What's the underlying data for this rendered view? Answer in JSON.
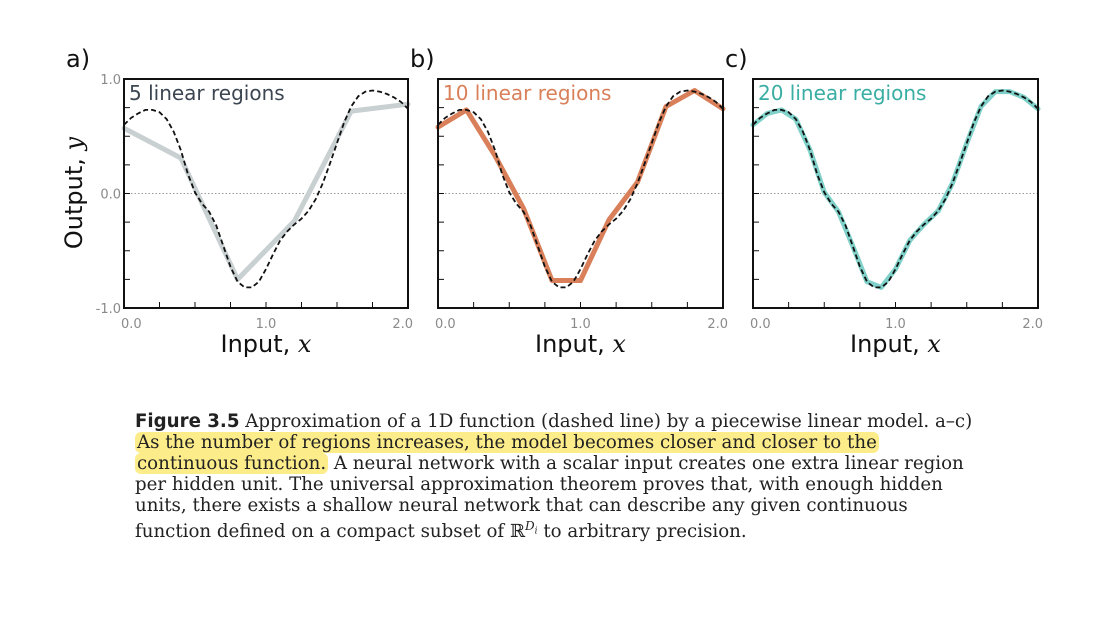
{
  "figure": {
    "x_label_text": "Input, ",
    "x_label_var": "x",
    "y_label_text": "Output, ",
    "y_label_var": "y"
  },
  "chart_data": [
    {
      "type": "line",
      "panel_label": "a)",
      "title": "5 linear regions",
      "title_color": "#3c4652",
      "xlabel": "Input, x",
      "ylabel": "Output, y",
      "xlim": [
        0,
        2
      ],
      "ylim": [
        -1,
        1
      ],
      "x_ticks": [
        "0.0",
        "1.0",
        "2.0"
      ],
      "y_ticks": [
        "1.0",
        "0.0",
        "-1.0"
      ],
      "series": [
        {
          "name": "piecewise linear model",
          "color": "#c9d0d2",
          "points": [
            [
              0.0,
              0.57
            ],
            [
              0.4,
              0.31
            ],
            [
              0.8,
              -0.75
            ],
            [
              1.2,
              -0.24
            ],
            [
              1.6,
              0.72
            ],
            [
              2.0,
              0.78
            ]
          ]
        },
        {
          "name": "continuous function (dashed)",
          "color": "#111111",
          "points": [
            [
              0.0,
              0.6
            ],
            [
              0.05,
              0.66
            ],
            [
              0.1,
              0.7
            ],
            [
              0.15,
              0.73
            ],
            [
              0.2,
              0.73
            ],
            [
              0.25,
              0.71
            ],
            [
              0.3,
              0.65
            ],
            [
              0.35,
              0.54
            ],
            [
              0.4,
              0.38
            ],
            [
              0.45,
              0.17
            ],
            [
              0.5,
              0.01
            ],
            [
              0.55,
              -0.09
            ],
            [
              0.6,
              -0.16
            ],
            [
              0.65,
              -0.28
            ],
            [
              0.7,
              -0.46
            ],
            [
              0.75,
              -0.64
            ],
            [
              0.8,
              -0.77
            ],
            [
              0.85,
              -0.82
            ],
            [
              0.9,
              -0.82
            ],
            [
              0.95,
              -0.77
            ],
            [
              1.0,
              -0.66
            ],
            [
              1.05,
              -0.53
            ],
            [
              1.1,
              -0.41
            ],
            [
              1.15,
              -0.33
            ],
            [
              1.2,
              -0.27
            ],
            [
              1.25,
              -0.22
            ],
            [
              1.3,
              -0.15
            ],
            [
              1.35,
              -0.05
            ],
            [
              1.4,
              0.09
            ],
            [
              1.45,
              0.26
            ],
            [
              1.5,
              0.44
            ],
            [
              1.55,
              0.62
            ],
            [
              1.6,
              0.76
            ],
            [
              1.65,
              0.85
            ],
            [
              1.7,
              0.89
            ],
            [
              1.75,
              0.9
            ],
            [
              1.8,
              0.89
            ],
            [
              1.85,
              0.87
            ],
            [
              1.9,
              0.84
            ],
            [
              1.95,
              0.8
            ],
            [
              2.0,
              0.74
            ]
          ]
        }
      ]
    },
    {
      "type": "line",
      "panel_label": "b)",
      "title": "10 linear regions",
      "title_color": "#d9805a",
      "xlabel": "Input, x",
      "xlim": [
        0,
        2
      ],
      "ylim": [
        -1,
        1
      ],
      "x_ticks": [
        "0.0",
        "1.0",
        "2.0"
      ],
      "series": [
        {
          "name": "piecewise linear model",
          "color": "#d9805a",
          "points": [
            [
              0.0,
              0.58
            ],
            [
              0.2,
              0.73
            ],
            [
              0.4,
              0.33
            ],
            [
              0.6,
              -0.13
            ],
            [
              0.8,
              -0.76
            ],
            [
              1.0,
              -0.76
            ],
            [
              1.2,
              -0.23
            ],
            [
              1.4,
              0.1
            ],
            [
              1.6,
              0.76
            ],
            [
              1.8,
              0.9
            ],
            [
              2.0,
              0.74
            ]
          ]
        },
        {
          "name": "continuous function (dashed)",
          "color": "#111111",
          "points": [
            [
              0.0,
              0.6
            ],
            [
              0.05,
              0.66
            ],
            [
              0.1,
              0.7
            ],
            [
              0.15,
              0.73
            ],
            [
              0.2,
              0.73
            ],
            [
              0.25,
              0.71
            ],
            [
              0.3,
              0.65
            ],
            [
              0.35,
              0.54
            ],
            [
              0.4,
              0.38
            ],
            [
              0.45,
              0.17
            ],
            [
              0.5,
              0.01
            ],
            [
              0.55,
              -0.09
            ],
            [
              0.6,
              -0.16
            ],
            [
              0.65,
              -0.28
            ],
            [
              0.7,
              -0.46
            ],
            [
              0.75,
              -0.64
            ],
            [
              0.8,
              -0.77
            ],
            [
              0.85,
              -0.82
            ],
            [
              0.9,
              -0.82
            ],
            [
              0.95,
              -0.77
            ],
            [
              1.0,
              -0.66
            ],
            [
              1.05,
              -0.53
            ],
            [
              1.1,
              -0.41
            ],
            [
              1.15,
              -0.33
            ],
            [
              1.2,
              -0.27
            ],
            [
              1.25,
              -0.22
            ],
            [
              1.3,
              -0.15
            ],
            [
              1.35,
              -0.05
            ],
            [
              1.4,
              0.09
            ],
            [
              1.45,
              0.26
            ],
            [
              1.5,
              0.44
            ],
            [
              1.55,
              0.62
            ],
            [
              1.6,
              0.76
            ],
            [
              1.65,
              0.85
            ],
            [
              1.7,
              0.89
            ],
            [
              1.75,
              0.9
            ],
            [
              1.8,
              0.89
            ],
            [
              1.85,
              0.87
            ],
            [
              1.9,
              0.84
            ],
            [
              1.95,
              0.8
            ],
            [
              2.0,
              0.74
            ]
          ]
        }
      ]
    },
    {
      "type": "line",
      "panel_label": "c)",
      "title": "20 linear regions",
      "title_color": "#3aaea3",
      "xlabel": "Input, x",
      "xlim": [
        0,
        2
      ],
      "ylim": [
        -1,
        1
      ],
      "x_ticks": [
        "0.0",
        "1.0",
        "2.0"
      ],
      "series": [
        {
          "name": "piecewise linear model",
          "color": "#7fd1c9",
          "points": [
            [
              0.0,
              0.6
            ],
            [
              0.1,
              0.7
            ],
            [
              0.2,
              0.73
            ],
            [
              0.3,
              0.65
            ],
            [
              0.4,
              0.38
            ],
            [
              0.5,
              0.01
            ],
            [
              0.6,
              -0.16
            ],
            [
              0.7,
              -0.46
            ],
            [
              0.8,
              -0.77
            ],
            [
              0.9,
              -0.82
            ],
            [
              1.0,
              -0.66
            ],
            [
              1.1,
              -0.41
            ],
            [
              1.2,
              -0.27
            ],
            [
              1.3,
              -0.15
            ],
            [
              1.4,
              0.09
            ],
            [
              1.5,
              0.44
            ],
            [
              1.6,
              0.76
            ],
            [
              1.7,
              0.89
            ],
            [
              1.8,
              0.89
            ],
            [
              1.9,
              0.84
            ],
            [
              2.0,
              0.74
            ]
          ]
        },
        {
          "name": "continuous function (dashed)",
          "color": "#111111",
          "points": [
            [
              0.0,
              0.6
            ],
            [
              0.05,
              0.66
            ],
            [
              0.1,
              0.7
            ],
            [
              0.15,
              0.73
            ],
            [
              0.2,
              0.73
            ],
            [
              0.25,
              0.71
            ],
            [
              0.3,
              0.65
            ],
            [
              0.35,
              0.54
            ],
            [
              0.4,
              0.38
            ],
            [
              0.45,
              0.17
            ],
            [
              0.5,
              0.01
            ],
            [
              0.55,
              -0.09
            ],
            [
              0.6,
              -0.16
            ],
            [
              0.65,
              -0.28
            ],
            [
              0.7,
              -0.46
            ],
            [
              0.75,
              -0.64
            ],
            [
              0.8,
              -0.77
            ],
            [
              0.85,
              -0.82
            ],
            [
              0.9,
              -0.82
            ],
            [
              0.95,
              -0.77
            ],
            [
              1.0,
              -0.66
            ],
            [
              1.05,
              -0.53
            ],
            [
              1.1,
              -0.41
            ],
            [
              1.15,
              -0.33
            ],
            [
              1.2,
              -0.27
            ],
            [
              1.25,
              -0.22
            ],
            [
              1.3,
              -0.15
            ],
            [
              1.35,
              -0.05
            ],
            [
              1.4,
              0.09
            ],
            [
              1.45,
              0.26
            ],
            [
              1.5,
              0.44
            ],
            [
              1.55,
              0.62
            ],
            [
              1.6,
              0.76
            ],
            [
              1.65,
              0.85
            ],
            [
              1.7,
              0.89
            ],
            [
              1.75,
              0.9
            ],
            [
              1.8,
              0.89
            ],
            [
              1.85,
              0.87
            ],
            [
              1.9,
              0.84
            ],
            [
              1.95,
              0.8
            ],
            [
              2.0,
              0.74
            ]
          ]
        }
      ]
    }
  ],
  "caption": {
    "lead": "Figure 3.5",
    "text_1": " Approximation of a 1D function (dashed line) by a piecewise linear model.  a–c) ",
    "highlight": "As the number of regions increases, the model becomes closer and closer to the continuous function.",
    "text_2": "  A neural network with a scalar input creates one extra linear region per hidden unit.  The universal approximation theorem proves that, with enough hidden units, there exists a shallow neural network that can describe any given continuous function defined on a compact subset of ",
    "math_base": "ℝ",
    "math_sup": "D",
    "math_sub": "i",
    "text_3": " to arbitrary precision."
  }
}
